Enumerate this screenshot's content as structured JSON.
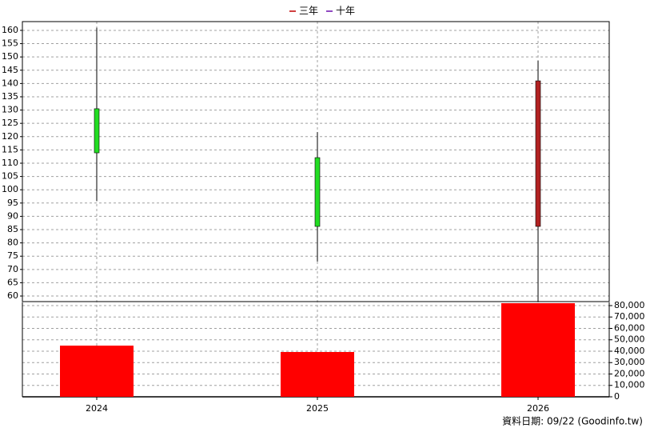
{
  "chart_data": {
    "type": "candlestick",
    "categories": [
      "2024",
      "2025",
      "2026"
    ],
    "open": [
      130.5,
      112.1,
      86.2
    ],
    "high": [
      161,
      121.7,
      148.6
    ],
    "low": [
      95.8,
      73,
      58
    ],
    "close": [
      113.9,
      86.2,
      141
    ],
    "up_color": "#b22222",
    "down_color": "#22dd22",
    "ylim": [
      57.9,
      163.3
    ],
    "yticks": [
      60,
      65,
      70,
      75,
      80,
      85,
      90,
      95,
      100,
      105,
      110,
      115,
      120,
      125,
      130,
      135,
      140,
      145,
      150,
      155,
      160
    ],
    "volume": {
      "values": [
        44900,
        39300,
        82100
      ],
      "color": "#ff0000"
    },
    "y2lim": [
      0,
      82800
    ],
    "y2ticks": [
      0,
      {
        "value": 10000,
        "label": "10,000"
      },
      {
        "value": 20000,
        "label": "20,000"
      },
      {
        "value": 30000,
        "label": "30,000"
      },
      {
        "value": 40000,
        "label": "40,000"
      },
      {
        "value": 50000,
        "label": "50,000"
      },
      {
        "value": 60000,
        "label": "60,000"
      },
      {
        "value": 70000,
        "label": "70,000"
      },
      {
        "value": 80000,
        "label": "80,000"
      }
    ],
    "legend": [
      {
        "name": "三年",
        "color": "#c00000"
      },
      {
        "name": "十年",
        "color": "#6a0dad"
      }
    ],
    "grid": true,
    "footnote": "資料日期: 09/22  (Goodinfo.tw)"
  }
}
